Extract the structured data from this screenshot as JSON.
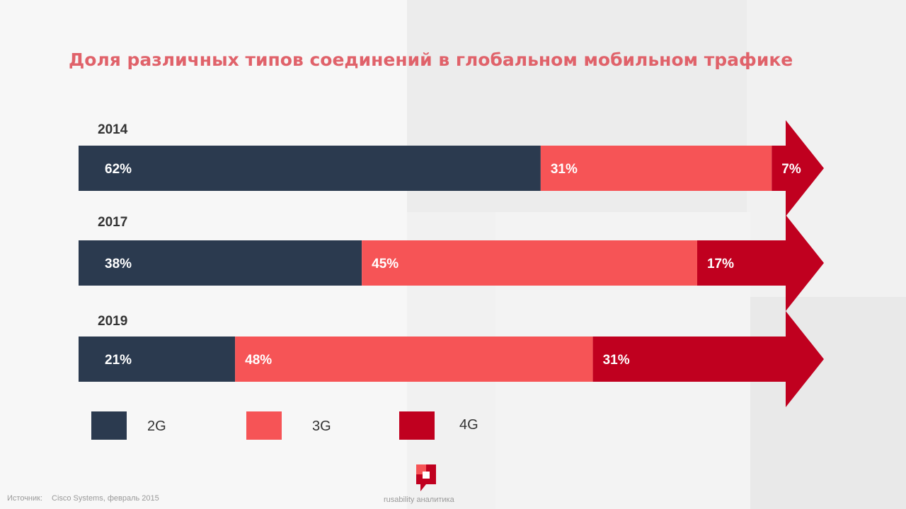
{
  "title": "Доля различных типов соединений в глобальном мобильном трафике",
  "chart_data": {
    "type": "bar",
    "orientation": "horizontal",
    "stacked": true,
    "title": "Доля различных типов соединений в глобальном мобильном трафике",
    "categories": [
      "2014",
      "2017",
      "2019"
    ],
    "series": [
      {
        "name": "2G",
        "values": [
          62,
          38,
          21
        ],
        "labels": [
          "62%",
          "38%",
          "21%"
        ],
        "color": "#2b3a4f"
      },
      {
        "name": "3G",
        "values": [
          31,
          45,
          48
        ],
        "labels": [
          "31%",
          "45%",
          "48%"
        ],
        "color": "#f65456"
      },
      {
        "name": "4G",
        "values": [
          7,
          17,
          31
        ],
        "labels": [
          "7%",
          "17%",
          "31%"
        ],
        "color": "#c0001f"
      }
    ],
    "unit": "%",
    "legend_position": "bottom"
  },
  "legend": [
    {
      "label": "2G",
      "color": "#2b3a4f"
    },
    {
      "label": "3G",
      "color": "#f65456"
    },
    {
      "label": "4G",
      "color": "#c0001f"
    }
  ],
  "footer": {
    "source_label": "Источник:",
    "source_text": "Cisco Systems, февраль 2015",
    "brand": "rusability аналитика"
  }
}
